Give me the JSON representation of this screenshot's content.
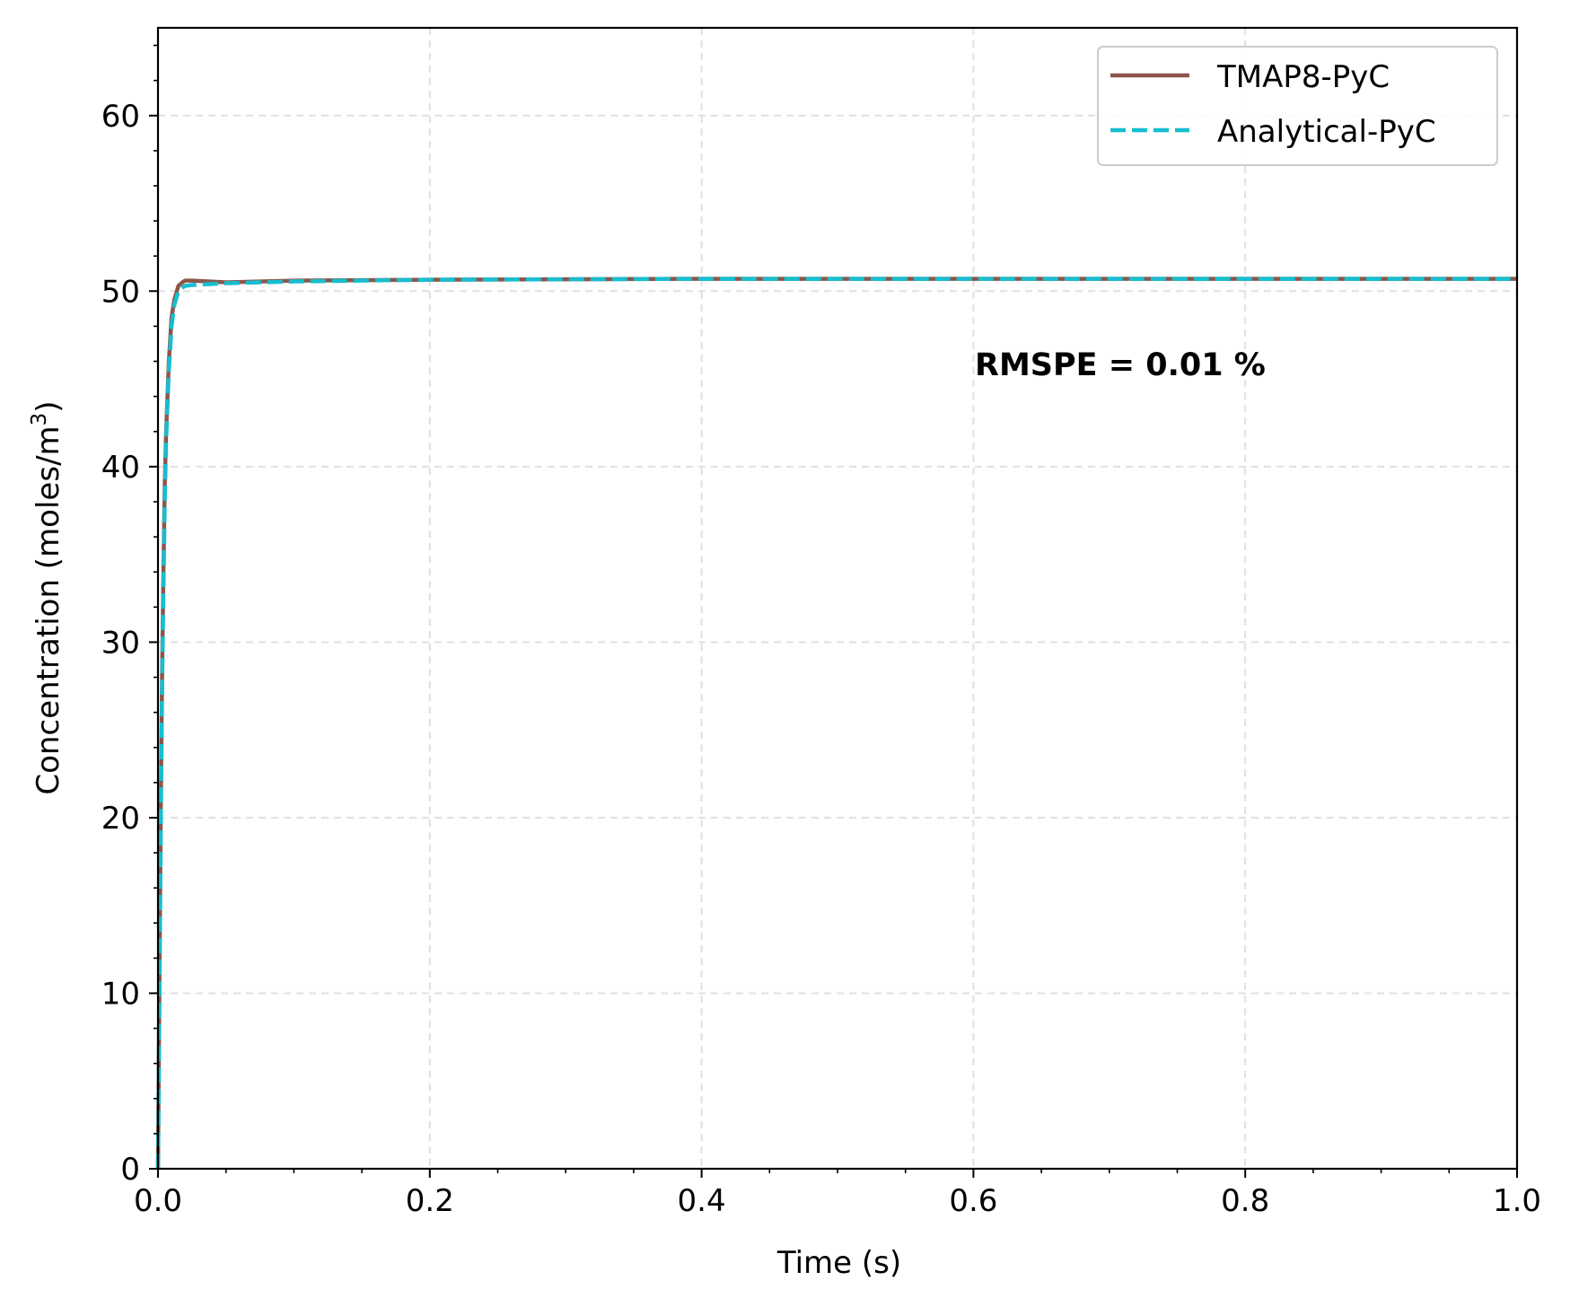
{
  "chart_data": {
    "type": "line",
    "title": "",
    "xlabel": "Time (s)",
    "ylabel_main": "Concentration (moles/m",
    "ylabel_sup": "3",
    "ylabel_end": ")",
    "xlim": [
      0,
      1.0
    ],
    "ylim": [
      0,
      65
    ],
    "x_ticks": [
      0.0,
      0.2,
      0.4,
      0.6,
      0.8,
      1.0
    ],
    "x_tick_labels": [
      "0.0",
      "0.2",
      "0.4",
      "0.6",
      "0.8",
      "1.0"
    ],
    "y_ticks": [
      0,
      10,
      20,
      30,
      40,
      50,
      60
    ],
    "y_tick_labels": [
      "0",
      "10",
      "20",
      "30",
      "40",
      "50",
      "60"
    ],
    "x_minor_step": 0.05,
    "y_minor_step": 2,
    "grid": true,
    "legend_position": "top-right",
    "annotation": "RMSPE = 0.01 %",
    "series": [
      {
        "name": "TMAP8-PyC",
        "color": "#8c564b",
        "style": "solid",
        "x": [
          0,
          0.0005,
          0.001,
          0.002,
          0.003,
          0.004,
          0.005,
          0.006,
          0.008,
          0.01,
          0.012,
          0.015,
          0.018,
          0.02,
          0.025,
          0.05,
          0.1,
          0.2,
          0.4,
          0.6,
          0.8,
          1.0
        ],
        "y": [
          0,
          5,
          10,
          20,
          28,
          34,
          39,
          42,
          46,
          48.5,
          49.5,
          50.3,
          50.5,
          50.6,
          50.6,
          50.5,
          50.6,
          50.65,
          50.7,
          50.7,
          50.7,
          50.7
        ]
      },
      {
        "name": "Analytical-PyC",
        "color": "#17becf",
        "style": "dashed",
        "x": [
          0,
          0.0005,
          0.001,
          0.002,
          0.003,
          0.004,
          0.005,
          0.006,
          0.008,
          0.01,
          0.012,
          0.015,
          0.018,
          0.02,
          0.025,
          0.05,
          0.1,
          0.2,
          0.4,
          0.6,
          0.8,
          1.0
        ],
        "y": [
          0,
          4,
          9,
          19,
          27,
          33,
          38,
          41.5,
          45.5,
          48,
          49.2,
          50.0,
          50.2,
          50.3,
          50.35,
          50.45,
          50.55,
          50.65,
          50.7,
          50.7,
          50.7,
          50.7
        ]
      }
    ]
  }
}
